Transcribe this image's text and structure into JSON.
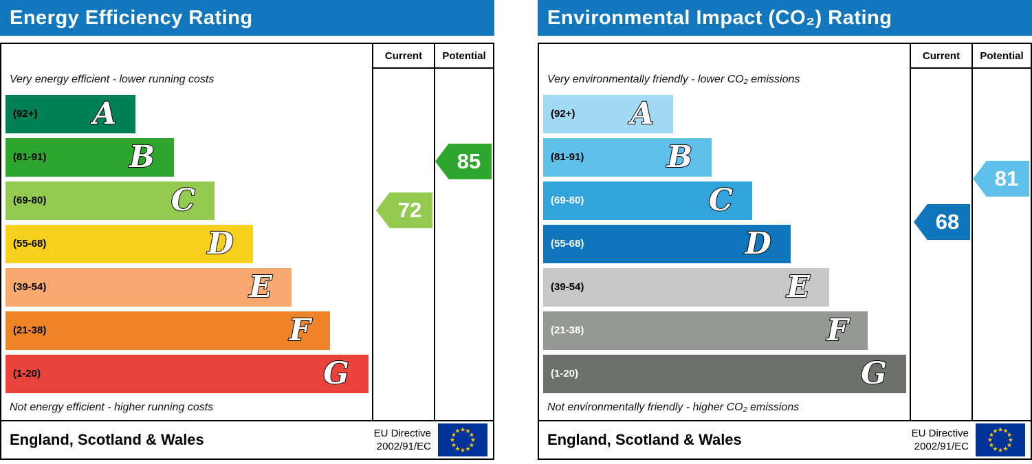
{
  "panels": [
    {
      "title": "Energy Efficiency Rating",
      "header_color": "#1377bd",
      "columns": {
        "current": "Current",
        "potential": "Potential"
      },
      "top_caption": "Very energy efficient - lower running costs",
      "bottom_caption": "Not energy efficient - higher running costs",
      "bands": [
        {
          "letter": "A",
          "range": "(92+)",
          "color": "#008054",
          "text_color": "#000000"
        },
        {
          "letter": "B",
          "range": "(81-91)",
          "color": "#2ea52c",
          "text_color": "#000000"
        },
        {
          "letter": "C",
          "range": "(69-80)",
          "color": "#94ca4f",
          "text_color": "#000000"
        },
        {
          "letter": "D",
          "range": "(55-68)",
          "color": "#f7d01e",
          "text_color": "#000000"
        },
        {
          "letter": "E",
          "range": "(39-54)",
          "color": "#f9a870",
          "text_color": "#000000"
        },
        {
          "letter": "F",
          "range": "(21-38)",
          "color": "#ee8329",
          "text_color": "#000000"
        },
        {
          "letter": "G",
          "range": "(1-20)",
          "color": "#e9433c",
          "text_color": "#000000"
        }
      ],
      "current": {
        "value": 72,
        "color": "#94ca4f"
      },
      "potential": {
        "value": 85,
        "color": "#2ea52c"
      },
      "footer": {
        "region": "England, Scotland & Wales",
        "directive_line1": "EU Directive",
        "directive_line2": "2002/91/EC"
      }
    },
    {
      "title": "Environmental Impact (CO₂) Rating",
      "header_color": "#1377bd",
      "columns": {
        "current": "Current",
        "potential": "Potential"
      },
      "top_caption": "Very environmentally friendly - lower CO₂ emissions",
      "bottom_caption": "Not environmentally friendly - higher CO₂ emissions",
      "bands": [
        {
          "letter": "A",
          "range": "(92+)",
          "color": "#a2d9f4",
          "text_color": "#000000"
        },
        {
          "letter": "B",
          "range": "(81-91)",
          "color": "#5fc0e9",
          "text_color": "#000000"
        },
        {
          "letter": "C",
          "range": "(69-80)",
          "color": "#33a3dc",
          "text_color": "#ffffff"
        },
        {
          "letter": "D",
          "range": "(55-68)",
          "color": "#1076bc",
          "text_color": "#ffffff"
        },
        {
          "letter": "E",
          "range": "(39-54)",
          "color": "#c6c7c6",
          "text_color": "#000000"
        },
        {
          "letter": "F",
          "range": "(21-38)",
          "color": "#969896",
          "text_color": "#ffffff"
        },
        {
          "letter": "G",
          "range": "(1-20)",
          "color": "#6e706e",
          "text_color": "#ffffff"
        }
      ],
      "current": {
        "value": 68,
        "color": "#1076bc"
      },
      "potential": {
        "value": 81,
        "color": "#5fc0e9"
      },
      "footer": {
        "region": "England, Scotland & Wales",
        "directive_line1": "EU Directive",
        "directive_line2": "2002/91/EC"
      }
    }
  ],
  "chart_data": [
    {
      "type": "bar",
      "title": "Energy Efficiency Rating",
      "categories": [
        "A (92+)",
        "B (81-91)",
        "C (69-80)",
        "D (55-68)",
        "E (39-54)",
        "F (21-38)",
        "G (1-20)"
      ],
      "series": [
        {
          "name": "Current",
          "values": [
            72
          ],
          "band": "C"
        },
        {
          "name": "Potential",
          "values": [
            85
          ],
          "band": "B"
        }
      ],
      "ylim": [
        1,
        100
      ],
      "annotations": [
        "Very energy efficient - lower running costs",
        "Not energy efficient - higher running costs",
        "England, Scotland & Wales",
        "EU Directive 2002/91/EC"
      ]
    },
    {
      "type": "bar",
      "title": "Environmental Impact (CO₂) Rating",
      "categories": [
        "A (92+)",
        "B (81-91)",
        "C (69-80)",
        "D (55-68)",
        "E (39-54)",
        "F (21-38)",
        "G (1-20)"
      ],
      "series": [
        {
          "name": "Current",
          "values": [
            68
          ],
          "band": "D"
        },
        {
          "name": "Potential",
          "values": [
            81
          ],
          "band": "B"
        }
      ],
      "ylim": [
        1,
        100
      ],
      "annotations": [
        "Very environmentally friendly - lower CO₂ emissions",
        "Not environmentally friendly - higher CO₂ emissions",
        "England, Scotland & Wales",
        "EU Directive 2002/91/EC"
      ]
    }
  ]
}
